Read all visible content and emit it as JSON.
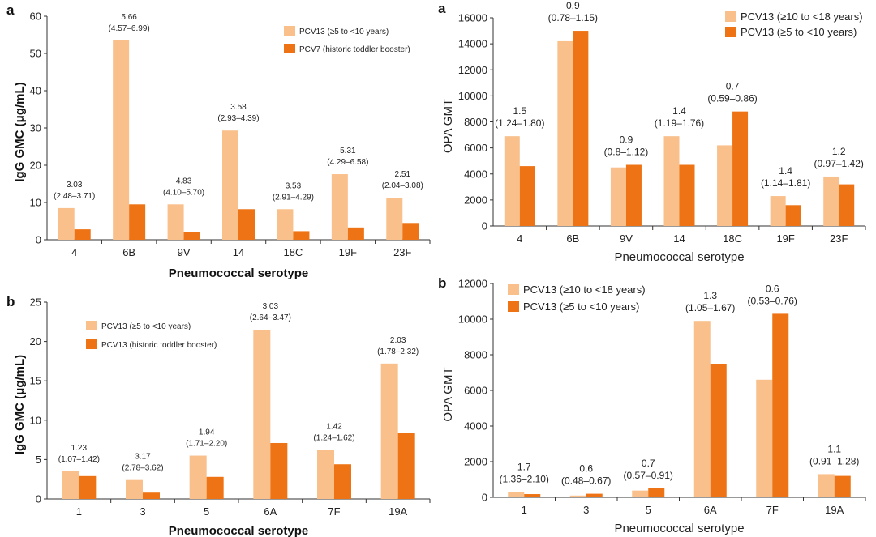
{
  "colors": {
    "light": "#F9C08C",
    "dark": "#EE7314"
  },
  "chart_data": [
    {
      "panel": "a",
      "type": "bar",
      "categories": [
        "4",
        "6B",
        "9V",
        "14",
        "18C",
        "19F",
        "23F"
      ],
      "series": [
        {
          "name": "PCV13 (≥5 to <10 years)",
          "values": [
            8.5,
            53.5,
            9.5,
            29.3,
            8.2,
            17.6,
            11.3
          ]
        },
        {
          "name": "PCV7 (historic toddler booster)",
          "values": [
            2.8,
            9.5,
            2.0,
            8.2,
            2.3,
            3.3,
            4.5
          ]
        }
      ],
      "annotations": [
        [
          "3.03",
          "(2.48–3.71)"
        ],
        [
          "5.66",
          "(4.57–6.99)"
        ],
        [
          "4.83",
          "(4.10–5.70)"
        ],
        [
          "3.58",
          "(2.93–4.39)"
        ],
        [
          "3.53",
          "(2.91–4.29)"
        ],
        [
          "5.31",
          "(4.29–6.58)"
        ],
        [
          "2.51",
          "(2.04–3.08)"
        ]
      ],
      "xlabel": "Pneumococcal serotype",
      "ylabel": "IgG GMC (μg/mL)",
      "ylim": [
        0,
        60
      ],
      "yticks": [
        "0",
        "10",
        "20",
        "30",
        "40",
        "50",
        "60"
      ],
      "legend": "top-right",
      "grid": false
    },
    {
      "panel": "b",
      "type": "bar",
      "categories": [
        "1",
        "3",
        "5",
        "6A",
        "7F",
        "19A"
      ],
      "series": [
        {
          "name": "PCV13 (≥5 to <10 years)",
          "values": [
            3.5,
            2.4,
            5.5,
            21.5,
            6.2,
            17.2
          ]
        },
        {
          "name": "PCV13 (historic toddler booster)",
          "values": [
            2.9,
            0.8,
            2.8,
            7.1,
            4.4,
            8.4
          ]
        }
      ],
      "annotations": [
        [
          "1.23",
          "(1.07–1.42)"
        ],
        [
          "3.17",
          "(2.78–3.62)"
        ],
        [
          "1.94",
          "(1.71–2.20)"
        ],
        [
          "3.03",
          "(2.64–3.47)"
        ],
        [
          "1.42",
          "(1.24–1.62)"
        ],
        [
          "2.03",
          "(1.78–2.32)"
        ]
      ],
      "xlabel": "Pneumococcal serotype",
      "ylabel": "IgG GMC (μg/mL)",
      "ylim": [
        0,
        25
      ],
      "yticks": [
        "0",
        "5",
        "10",
        "15",
        "20",
        "25"
      ],
      "legend": "top-left",
      "grid": false
    },
    {
      "panel": "a",
      "type": "bar",
      "categories": [
        "4",
        "6B",
        "9V",
        "14",
        "18C",
        "19F",
        "23F"
      ],
      "series": [
        {
          "name": "PCV13 (≥10 to <18 years)",
          "values": [
            6900,
            14200,
            4500,
            6900,
            6200,
            2300,
            3800
          ]
        },
        {
          "name": "PCV13 (≥5 to <10 years)",
          "values": [
            4600,
            15000,
            4700,
            4700,
            8800,
            1600,
            3200
          ]
        }
      ],
      "annotations": [
        [
          "1.5",
          "(1.24–1.80)"
        ],
        [
          "0.9",
          "(0.78–1.15)"
        ],
        [
          "0.9",
          "(0.8–1.12)"
        ],
        [
          "1.4",
          "(1.19–1.76)"
        ],
        [
          "0.7",
          "(0.59–0.86)"
        ],
        [
          "1.4",
          "(1.14–1.81)"
        ],
        [
          "1.2",
          "(0.97–1.42)"
        ]
      ],
      "xlabel": "Pneumococcal serotype",
      "ylabel": "OPA GMT",
      "ylim": [
        0,
        16000
      ],
      "yticks": [
        "0",
        "2000",
        "4000",
        "6000",
        "8000",
        "10000",
        "12000",
        "14000",
        "16000"
      ],
      "legend": "top-right",
      "grid": false
    },
    {
      "panel": "b",
      "type": "bar",
      "categories": [
        "1",
        "3",
        "5",
        "6A",
        "7F",
        "19A"
      ],
      "series": [
        {
          "name": "PCV13 (≥10 to <18 years)",
          "values": [
            300,
            100,
            380,
            9900,
            6600,
            1300
          ]
        },
        {
          "name": "PCV13 (≥5 to <10 years)",
          "values": [
            180,
            200,
            500,
            7500,
            10300,
            1200
          ]
        }
      ],
      "annotations": [
        [
          "1.7",
          "(1.36–2.10)"
        ],
        [
          "0.6",
          "(0.48–0.67)"
        ],
        [
          "0.7",
          "(0.57–0.91)"
        ],
        [
          "1.3",
          "(1.05–1.67)"
        ],
        [
          "0.6",
          "(0.53–0.76)"
        ],
        [
          "1.1",
          "(0.91–1.28)"
        ]
      ],
      "xlabel": "Pneumococcal serotype",
      "ylabel": "OPA GMT",
      "ylim": [
        0,
        12000
      ],
      "yticks": [
        "0",
        "2000",
        "4000",
        "6000",
        "8000",
        "10000",
        "12000"
      ],
      "legend": "top-left",
      "grid": false
    }
  ]
}
